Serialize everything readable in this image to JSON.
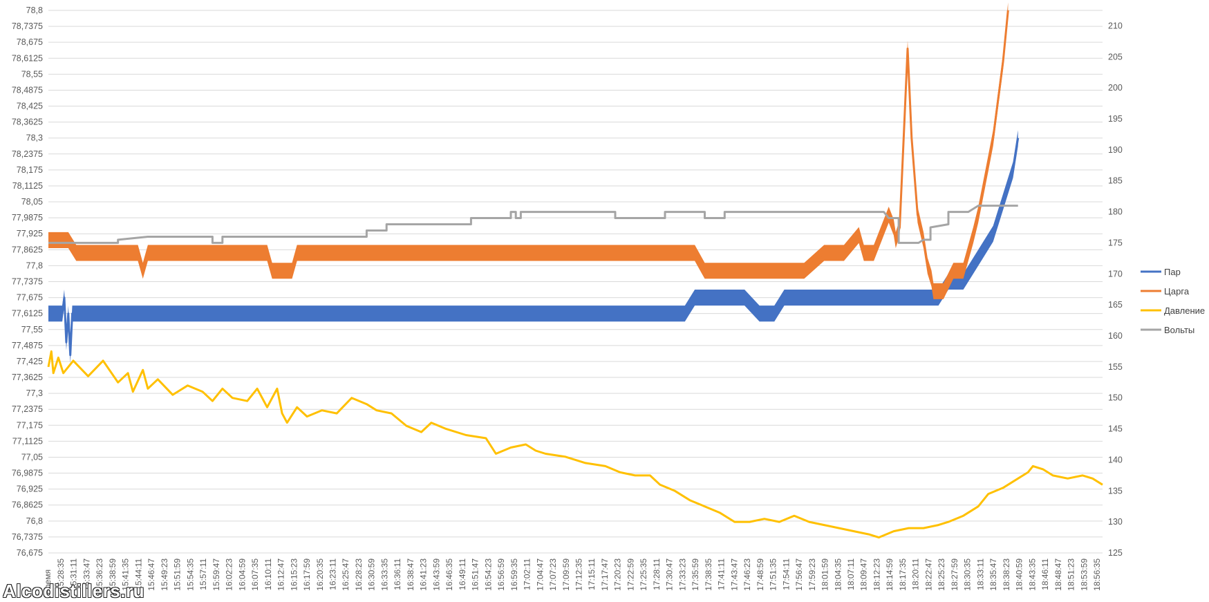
{
  "chart_data": {
    "type": "line",
    "title": "",
    "xlabel": "Время",
    "y_left": {
      "min": 76.675,
      "max": 78.8,
      "step": 0.0625,
      "tick_labels": [
        "76,675",
        "76,7375",
        "76,8",
        "76,8625",
        "76,925",
        "76,9875",
        "77,05",
        "77,1125",
        "77,175",
        "77,2375",
        "77,3",
        "77,3625",
        "77,425",
        "77,4875",
        "77,55",
        "77,6125",
        "77,675",
        "77,7375",
        "77,8",
        "77,8625",
        "77,925",
        "77,9875",
        "78,05",
        "78,1125",
        "78,175",
        "78,2375",
        "78,3",
        "78,3625",
        "78,425",
        "78,4875",
        "78,55",
        "78,6125",
        "78,675",
        "78,7375",
        "78,8"
      ]
    },
    "y_right": {
      "min": 125,
      "max": 212.5,
      "step": 5,
      "tick_labels": [
        "125",
        "130",
        "135",
        "140",
        "145",
        "150",
        "155",
        "160",
        "165",
        "170",
        "175",
        "180",
        "185",
        "190",
        "195",
        "200",
        "205",
        "210"
      ]
    },
    "x_tick_labels": [
      "15:28:35",
      "15:31:11",
      "15:33:47",
      "15:36:23",
      "15:38:59",
      "15:41:35",
      "15:44:11",
      "15:46:47",
      "15:49:23",
      "15:51:59",
      "15:54:35",
      "15:57:11",
      "15:59:47",
      "16:02:23",
      "16:04:59",
      "16:07:35",
      "16:10:11",
      "16:12:47",
      "16:15:23",
      "16:17:59",
      "16:20:35",
      "16:23:11",
      "16:25:47",
      "16:28:23",
      "16:30:59",
      "16:33:35",
      "16:36:11",
      "16:38:47",
      "16:41:23",
      "16:43:59",
      "16:46:35",
      "16:49:11",
      "16:51:47",
      "16:54:23",
      "16:56:59",
      "16:59:35",
      "17:02:11",
      "17:04:47",
      "17:07:23",
      "17:09:59",
      "17:12:35",
      "17:15:11",
      "17:17:47",
      "17:20:23",
      "17:22:59",
      "17:25:35",
      "17:28:11",
      "17:30:47",
      "17:33:23",
      "17:35:59",
      "17:38:35",
      "17:41:11",
      "17:43:47",
      "17:46:23",
      "17:48:59",
      "17:51:35",
      "17:54:11",
      "17:56:47",
      "17:59:23",
      "18:01:59",
      "18:04:35",
      "18:07:11",
      "18:09:47",
      "18:12:23",
      "18:14:59",
      "18:17:35",
      "18:20:11",
      "18:22:47",
      "18:25:23",
      "18:27:59",
      "18:30:35",
      "18:33:11",
      "18:35:47",
      "18:38:23",
      "18:40:59",
      "18:43:35",
      "18:46:11",
      "18:48:47",
      "18:51:23",
      "18:53:59",
      "18:56:35"
    ],
    "legend_position": "right",
    "grid": true,
    "series": [
      {
        "name": "Пар",
        "axis": "left",
        "color": "#4472C4",
        "band": 0.0625,
        "points": [
          [
            0,
            77.6125
          ],
          [
            14,
            77.6125
          ],
          [
            16,
            77.675
          ],
          [
            18,
            77.5
          ],
          [
            20,
            77.6125
          ],
          [
            22,
            77.45
          ],
          [
            24,
            77.6125
          ],
          [
            60,
            77.6125
          ],
          [
            120,
            77.6125
          ],
          [
            180,
            77.6125
          ],
          [
            240,
            77.6125
          ],
          [
            300,
            77.6125
          ],
          [
            360,
            77.6125
          ],
          [
            420,
            77.6125
          ],
          [
            470,
            77.6125
          ],
          [
            530,
            77.6125
          ],
          [
            570,
            77.6125
          ],
          [
            580,
            77.6125
          ],
          [
            610,
            77.6125
          ],
          [
            640,
            77.6125
          ],
          [
            650,
            77.675
          ],
          [
            700,
            77.675
          ],
          [
            715,
            77.6125
          ],
          [
            730,
            77.6125
          ],
          [
            740,
            77.675
          ],
          [
            760,
            77.675
          ],
          [
            800,
            77.675
          ],
          [
            860,
            77.675
          ],
          [
            870,
            77.675
          ],
          [
            885,
            77.675
          ],
          [
            895,
            77.675
          ],
          [
            905,
            77.7375
          ],
          [
            920,
            77.7375
          ],
          [
            930,
            77.8
          ],
          [
            940,
            77.8625
          ],
          [
            950,
            77.925
          ],
          [
            955,
            77.9875
          ],
          [
            960,
            78.05
          ],
          [
            965,
            78.1125
          ],
          [
            970,
            78.175
          ],
          [
            975,
            78.3
          ]
        ]
      },
      {
        "name": "Царга",
        "axis": "left",
        "color": "#ED7D31",
        "band": 0.0625,
        "points": [
          [
            0,
            77.9
          ],
          [
            20,
            77.9
          ],
          [
            28,
            77.85
          ],
          [
            60,
            77.85
          ],
          [
            90,
            77.85
          ],
          [
            95,
            77.78
          ],
          [
            100,
            77.85
          ],
          [
            200,
            77.85
          ],
          [
            220,
            77.85
          ],
          [
            225,
            77.78
          ],
          [
            245,
            77.78
          ],
          [
            250,
            77.85
          ],
          [
            300,
            77.85
          ],
          [
            400,
            77.85
          ],
          [
            470,
            77.85
          ],
          [
            480,
            77.85
          ],
          [
            520,
            77.85
          ],
          [
            600,
            77.85
          ],
          [
            650,
            77.85
          ],
          [
            660,
            77.78
          ],
          [
            700,
            77.78
          ],
          [
            720,
            77.78
          ],
          [
            760,
            77.78
          ],
          [
            780,
            77.85
          ],
          [
            800,
            77.85
          ],
          [
            815,
            77.92
          ],
          [
            820,
            77.85
          ],
          [
            830,
            77.85
          ],
          [
            840,
            77.95
          ],
          [
            845,
            78.0
          ],
          [
            850,
            77.95
          ],
          [
            852,
            77.9
          ],
          [
            856,
            77.95
          ],
          [
            860,
            78.3
          ],
          [
            864,
            78.65
          ],
          [
            868,
            78.3
          ],
          [
            874,
            78.0
          ],
          [
            880,
            77.9
          ],
          [
            884,
            77.8
          ],
          [
            888,
            77.75
          ],
          [
            890,
            77.7
          ],
          [
            900,
            77.7
          ],
          [
            910,
            77.78
          ],
          [
            920,
            77.78
          ],
          [
            925,
            77.85
          ],
          [
            930,
            77.92
          ],
          [
            935,
            78.0
          ],
          [
            940,
            78.1
          ],
          [
            945,
            78.2
          ],
          [
            950,
            78.3
          ],
          [
            955,
            78.45
          ],
          [
            960,
            78.6
          ],
          [
            965,
            78.8
          ]
        ]
      },
      {
        "name": "Давление",
        "axis": "right",
        "color": "#FFC000",
        "band": 0,
        "points": [
          [
            0,
            155
          ],
          [
            3,
            157.5
          ],
          [
            5,
            154
          ],
          [
            10,
            156.5
          ],
          [
            15,
            154
          ],
          [
            25,
            156
          ],
          [
            40,
            153.5
          ],
          [
            55,
            156
          ],
          [
            70,
            152.5
          ],
          [
            80,
            154
          ],
          [
            85,
            151
          ],
          [
            95,
            154.5
          ],
          [
            100,
            151.5
          ],
          [
            110,
            153
          ],
          [
            125,
            150.5
          ],
          [
            140,
            152
          ],
          [
            155,
            151
          ],
          [
            165,
            149.5
          ],
          [
            175,
            151.5
          ],
          [
            185,
            150
          ],
          [
            200,
            149.5
          ],
          [
            210,
            151.5
          ],
          [
            220,
            148.5
          ],
          [
            230,
            151.5
          ],
          [
            235,
            147.5
          ],
          [
            240,
            146
          ],
          [
            250,
            148.5
          ],
          [
            260,
            147
          ],
          [
            275,
            148
          ],
          [
            290,
            147.5
          ],
          [
            305,
            150
          ],
          [
            320,
            149
          ],
          [
            330,
            148
          ],
          [
            345,
            147.5
          ],
          [
            360,
            145.5
          ],
          [
            375,
            144.5
          ],
          [
            385,
            146
          ],
          [
            400,
            145
          ],
          [
            420,
            144
          ],
          [
            440,
            143.5
          ],
          [
            450,
            141
          ],
          [
            465,
            142
          ],
          [
            480,
            142.5
          ],
          [
            490,
            141.5
          ],
          [
            500,
            141
          ],
          [
            520,
            140.5
          ],
          [
            540,
            139.5
          ],
          [
            560,
            139
          ],
          [
            575,
            138
          ],
          [
            590,
            137.5
          ],
          [
            605,
            137.5
          ],
          [
            615,
            136
          ],
          [
            630,
            135
          ],
          [
            645,
            133.5
          ],
          [
            660,
            132.5
          ],
          [
            675,
            131.5
          ],
          [
            690,
            130
          ],
          [
            705,
            130
          ],
          [
            720,
            130.5
          ],
          [
            735,
            130
          ],
          [
            750,
            131
          ],
          [
            765,
            130
          ],
          [
            780,
            129.5
          ],
          [
            795,
            129
          ],
          [
            810,
            128.5
          ],
          [
            825,
            128
          ],
          [
            835,
            127.5
          ],
          [
            850,
            128.5
          ],
          [
            865,
            129
          ],
          [
            880,
            129
          ],
          [
            895,
            129.5
          ],
          [
            905,
            130
          ],
          [
            920,
            131
          ],
          [
            935,
            132.5
          ],
          [
            945,
            134.5
          ],
          [
            960,
            135.5
          ],
          [
            975,
            137
          ],
          [
            985,
            138
          ],
          [
            990,
            139
          ],
          [
            1000,
            138.5
          ],
          [
            1010,
            137.5
          ],
          [
            1025,
            137
          ],
          [
            1040,
            137.5
          ],
          [
            1050,
            137
          ],
          [
            1055,
            136.5
          ],
          [
            1060,
            136
          ]
        ]
      },
      {
        "name": "Вольты",
        "axis": "right",
        "color": "#A5A5A5",
        "band": 0,
        "points": [
          [
            0,
            175
          ],
          [
            70,
            175
          ],
          [
            70,
            175.5
          ],
          [
            100,
            176
          ],
          [
            165,
            176
          ],
          [
            165,
            175
          ],
          [
            175,
            175
          ],
          [
            175,
            176
          ],
          [
            275,
            176
          ],
          [
            320,
            176
          ],
          [
            320,
            177
          ],
          [
            340,
            177
          ],
          [
            340,
            178
          ],
          [
            425,
            178
          ],
          [
            425,
            179
          ],
          [
            465,
            179
          ],
          [
            465,
            180
          ],
          [
            470,
            180
          ],
          [
            470,
            179
          ],
          [
            475,
            179
          ],
          [
            475,
            180
          ],
          [
            540,
            180
          ],
          [
            550,
            180
          ],
          [
            550,
            180
          ],
          [
            570,
            180
          ],
          [
            570,
            179
          ],
          [
            620,
            179
          ],
          [
            620,
            180
          ],
          [
            660,
            180
          ],
          [
            660,
            179
          ],
          [
            680,
            179
          ],
          [
            680,
            180
          ],
          [
            720,
            180
          ],
          [
            800,
            180
          ],
          [
            840,
            180
          ],
          [
            845,
            179
          ],
          [
            855,
            179
          ],
          [
            855,
            175
          ],
          [
            875,
            175
          ],
          [
            880,
            175.5
          ],
          [
            887,
            175.5
          ],
          [
            887,
            177.5
          ],
          [
            905,
            178
          ],
          [
            905,
            180
          ],
          [
            925,
            180
          ],
          [
            935,
            181
          ],
          [
            960,
            181
          ],
          [
            975,
            181
          ]
        ]
      }
    ]
  },
  "watermark": "Alcodistillers.ru"
}
